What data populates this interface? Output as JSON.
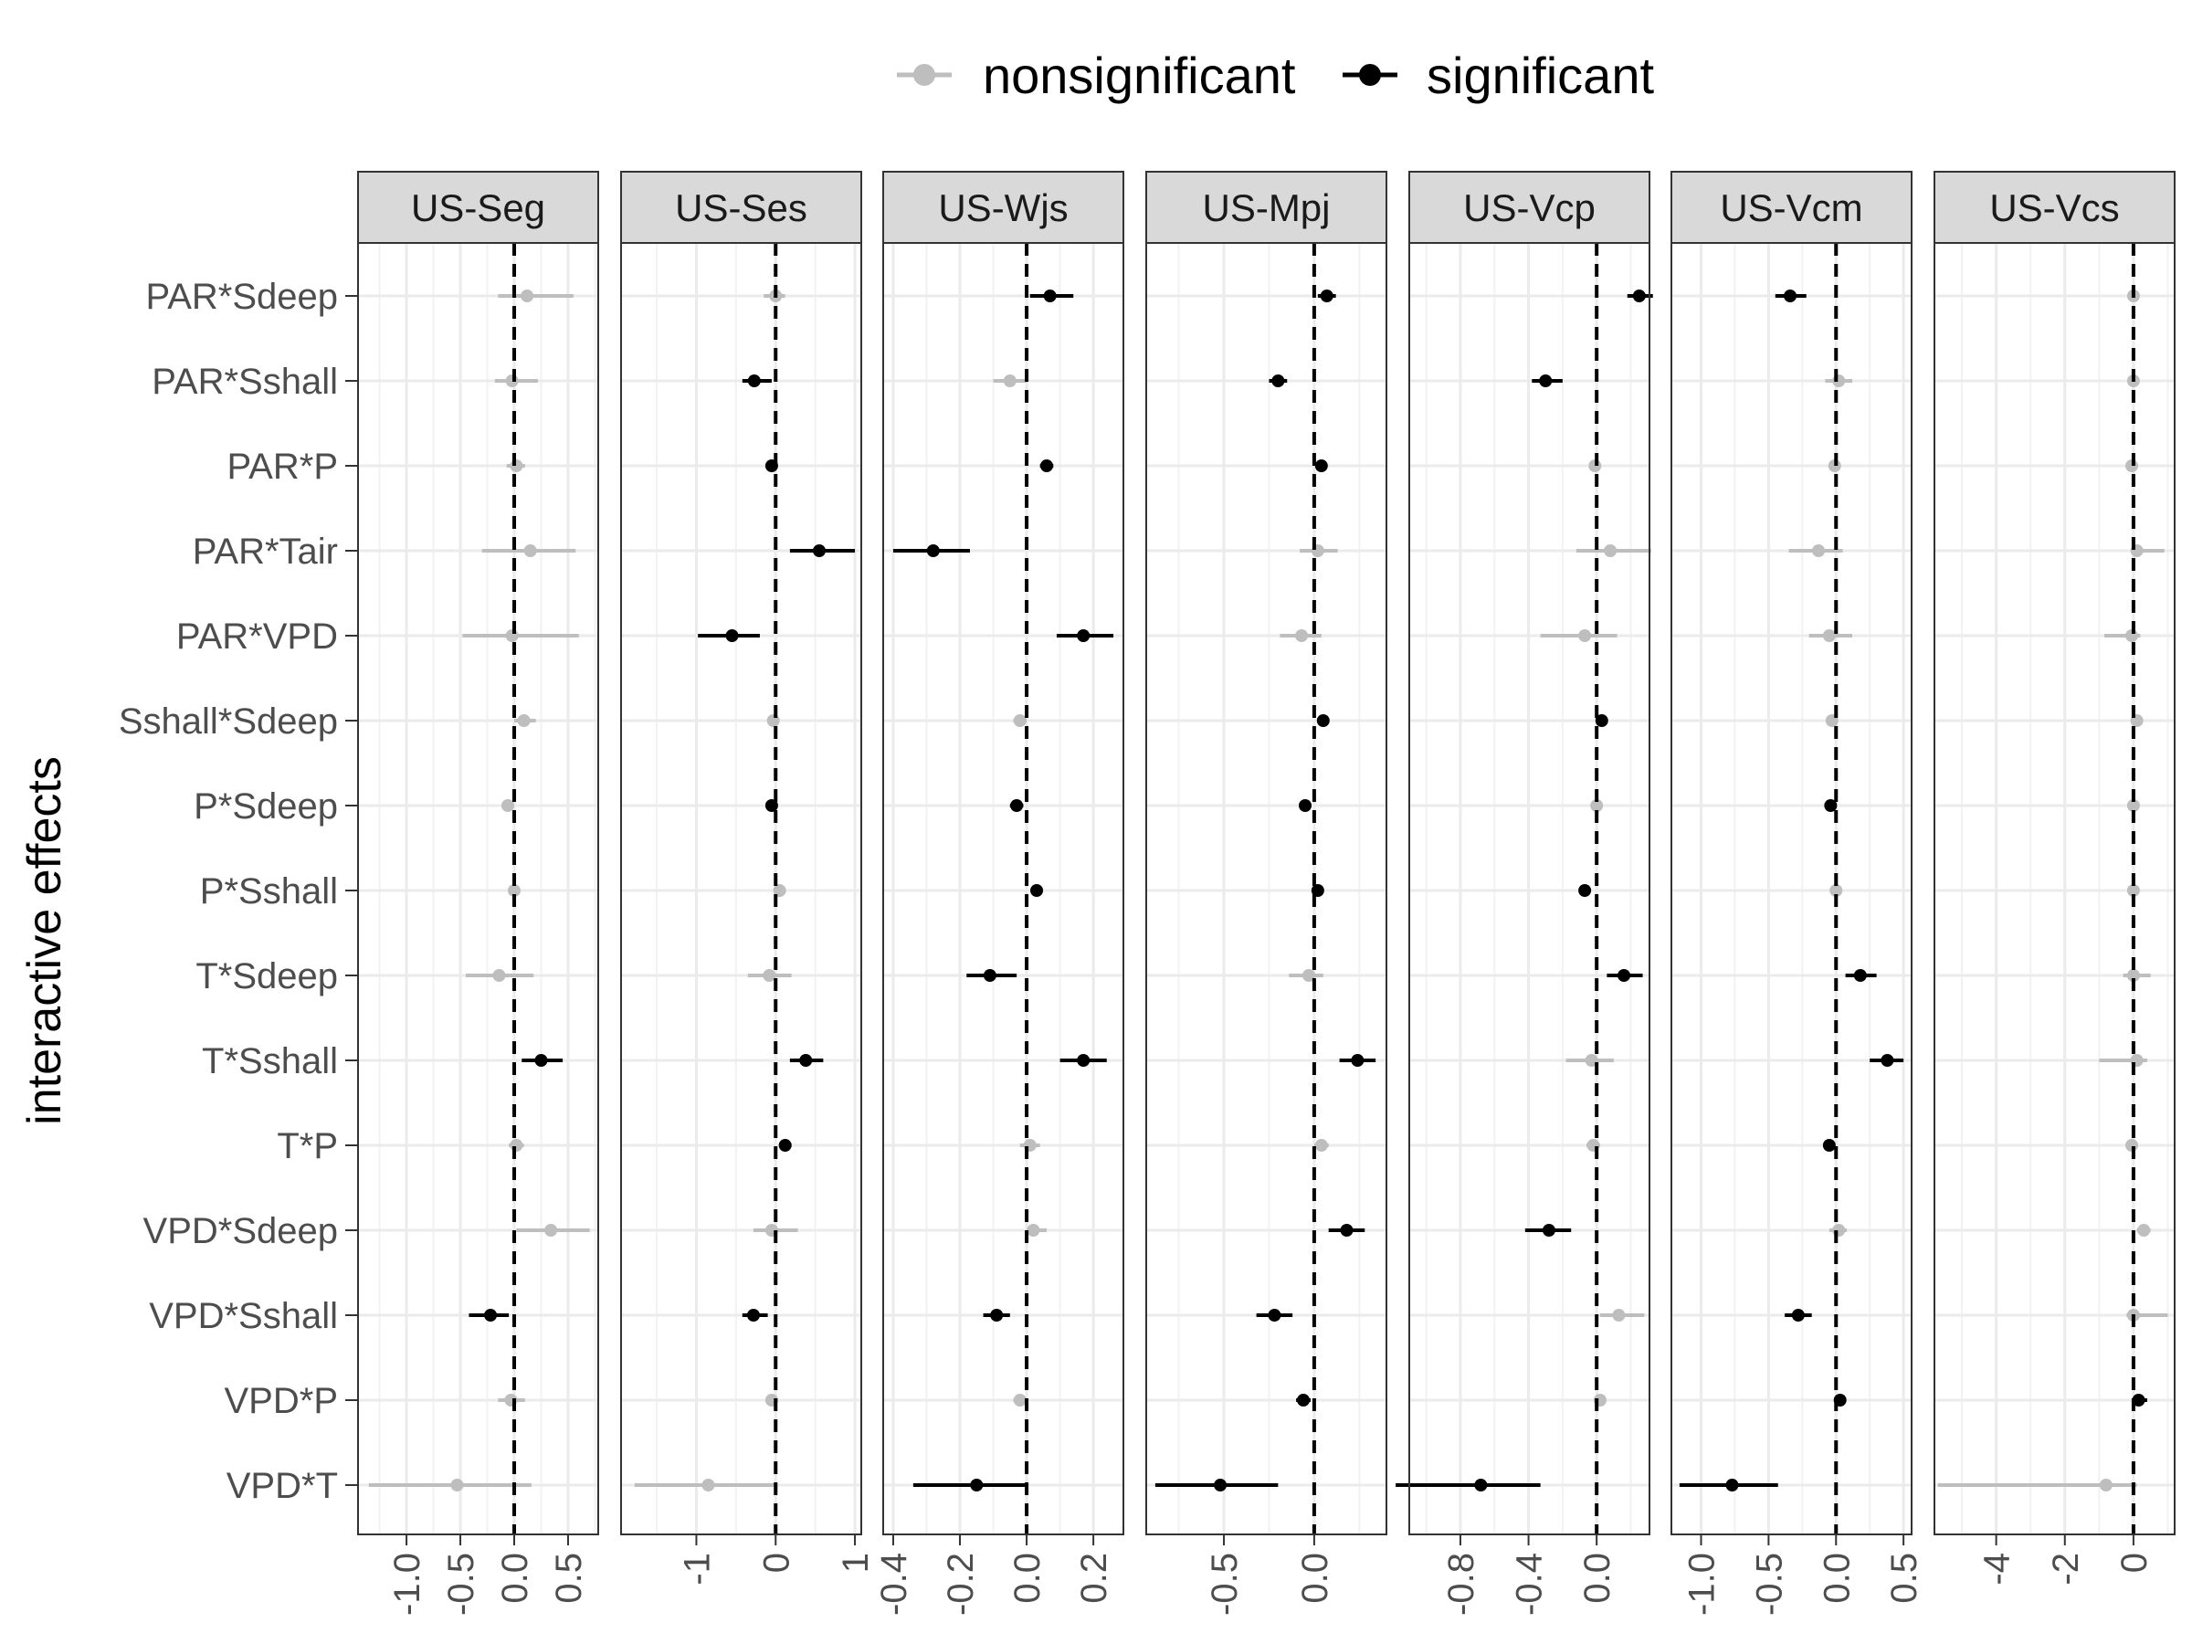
{
  "chart_data": {
    "type": "scatter",
    "subtype": "faceted coefficient plot with error bars",
    "ylabel": "interactive effects",
    "legend": {
      "position": "top",
      "entries": [
        {
          "label": "nonsignificant",
          "color": "#bebebe"
        },
        {
          "label": "significant",
          "color": "#000000"
        }
      ]
    },
    "reference_line": {
      "x": 0,
      "style": "dashed"
    },
    "grid": true,
    "y_categories": [
      "PAR*Sdeep",
      "PAR*Sshall",
      "PAR*P",
      "PAR*Tair",
      "PAR*VPD",
      "Sshall*Sdeep",
      "P*Sdeep",
      "P*Sshall",
      "T*Sdeep",
      "T*Sshall",
      "T*P",
      "VPD*Sdeep",
      "VPD*Sshall",
      "VPD*P",
      "VPD*T"
    ],
    "panels": [
      {
        "title": "US-Seg",
        "xlim": [
          -1.45,
          0.78
        ],
        "xticks": [
          -1.0,
          -0.5,
          0.0,
          0.5
        ],
        "xtick_labels": [
          "-1.0",
          "-0.5",
          "0.0",
          "0.5"
        ],
        "points": [
          {
            "term": "PAR*Sdeep",
            "est": 0.12,
            "lo": -0.15,
            "hi": 0.55,
            "sig": false
          },
          {
            "term": "PAR*Sshall",
            "est": -0.02,
            "lo": -0.18,
            "hi": 0.22,
            "sig": false
          },
          {
            "term": "PAR*P",
            "est": 0.02,
            "lo": -0.07,
            "hi": 0.1,
            "sig": false
          },
          {
            "term": "PAR*Tair",
            "est": 0.15,
            "lo": -0.3,
            "hi": 0.57,
            "sig": false
          },
          {
            "term": "PAR*VPD",
            "est": -0.02,
            "lo": -0.48,
            "hi": 0.6,
            "sig": false
          },
          {
            "term": "Sshall*Sdeep",
            "est": 0.09,
            "lo": 0.0,
            "hi": 0.2,
            "sig": false
          },
          {
            "term": "P*Sdeep",
            "est": -0.06,
            "lo": -0.11,
            "hi": 0.0,
            "sig": false
          },
          {
            "term": "P*Sshall",
            "est": 0.0,
            "lo": -0.04,
            "hi": 0.04,
            "sig": false
          },
          {
            "term": "T*Sdeep",
            "est": -0.14,
            "lo": -0.45,
            "hi": 0.18,
            "sig": false
          },
          {
            "term": "T*Sshall",
            "est": 0.25,
            "lo": 0.07,
            "hi": 0.45,
            "sig": true
          },
          {
            "term": "T*P",
            "est": 0.02,
            "lo": -0.05,
            "hi": 0.09,
            "sig": false
          },
          {
            "term": "VPD*Sdeep",
            "est": 0.34,
            "lo": 0.02,
            "hi": 0.7,
            "sig": false
          },
          {
            "term": "VPD*Sshall",
            "est": -0.22,
            "lo": -0.42,
            "hi": -0.05,
            "sig": true
          },
          {
            "term": "VPD*P",
            "est": -0.03,
            "lo": -0.15,
            "hi": 0.1,
            "sig": false
          },
          {
            "term": "VPD*T",
            "est": -0.53,
            "lo": -1.35,
            "hi": 0.16,
            "sig": false
          }
        ]
      },
      {
        "title": "US-Ses",
        "xlim": [
          -1.95,
          1.08
        ],
        "xticks": [
          -1,
          0,
          1
        ],
        "xtick_labels": [
          "-1",
          "0",
          "1"
        ],
        "points": [
          {
            "term": "PAR*Sdeep",
            "est": 0.0,
            "lo": -0.15,
            "hi": 0.12,
            "sig": false
          },
          {
            "term": "PAR*Sshall",
            "est": -0.27,
            "lo": -0.42,
            "hi": -0.05,
            "sig": true
          },
          {
            "term": "PAR*P",
            "est": -0.05,
            "lo": -0.1,
            "hi": 0.02,
            "sig": true
          },
          {
            "term": "PAR*Tair",
            "est": 0.55,
            "lo": 0.18,
            "hi": 1.0,
            "sig": true
          },
          {
            "term": "PAR*VPD",
            "est": -0.55,
            "lo": -0.98,
            "hi": -0.2,
            "sig": true
          },
          {
            "term": "Sshall*Sdeep",
            "est": -0.03,
            "lo": -0.08,
            "hi": 0.03,
            "sig": false
          },
          {
            "term": "P*Sdeep",
            "est": -0.05,
            "lo": -0.11,
            "hi": 0.0,
            "sig": true
          },
          {
            "term": "P*Sshall",
            "est": 0.05,
            "lo": 0.0,
            "hi": 0.1,
            "sig": false
          },
          {
            "term": "T*Sdeep",
            "est": -0.08,
            "lo": -0.35,
            "hi": 0.2,
            "sig": false
          },
          {
            "term": "T*Sshall",
            "est": 0.38,
            "lo": 0.18,
            "hi": 0.6,
            "sig": true
          },
          {
            "term": "T*P",
            "est": 0.12,
            "lo": 0.05,
            "hi": 0.2,
            "sig": true
          },
          {
            "term": "VPD*Sdeep",
            "est": -0.05,
            "lo": -0.28,
            "hi": 0.28,
            "sig": false
          },
          {
            "term": "VPD*Sshall",
            "est": -0.28,
            "lo": -0.42,
            "hi": -0.1,
            "sig": true
          },
          {
            "term": "VPD*P",
            "est": -0.05,
            "lo": -0.13,
            "hi": 0.03,
            "sig": false
          },
          {
            "term": "VPD*T",
            "est": -0.85,
            "lo": -1.78,
            "hi": 0.0,
            "sig": false
          }
        ]
      },
      {
        "title": "US-Wjs",
        "xlim": [
          -0.43,
          0.29
        ],
        "xticks": [
          -0.4,
          -0.2,
          0.0,
          0.2
        ],
        "xtick_labels": [
          "-0.4",
          "-0.2",
          "0.0",
          "0.2"
        ],
        "points": [
          {
            "term": "PAR*Sdeep",
            "est": 0.07,
            "lo": 0.01,
            "hi": 0.14,
            "sig": true
          },
          {
            "term": "PAR*Sshall",
            "est": -0.05,
            "lo": -0.1,
            "hi": 0.0,
            "sig": false
          },
          {
            "term": "PAR*P",
            "est": 0.06,
            "lo": 0.04,
            "hi": 0.08,
            "sig": true
          },
          {
            "term": "PAR*Tair",
            "est": -0.28,
            "lo": -0.4,
            "hi": -0.17,
            "sig": true
          },
          {
            "term": "PAR*VPD",
            "est": 0.17,
            "lo": 0.09,
            "hi": 0.26,
            "sig": true
          },
          {
            "term": "Sshall*Sdeep",
            "est": -0.02,
            "lo": -0.04,
            "hi": 0.0,
            "sig": false
          },
          {
            "term": "P*Sdeep",
            "est": -0.03,
            "lo": -0.05,
            "hi": -0.01,
            "sig": true
          },
          {
            "term": "P*Sshall",
            "est": 0.03,
            "lo": 0.02,
            "hi": 0.04,
            "sig": true
          },
          {
            "term": "T*Sdeep",
            "est": -0.11,
            "lo": -0.18,
            "hi": -0.03,
            "sig": true
          },
          {
            "term": "T*Sshall",
            "est": 0.17,
            "lo": 0.1,
            "hi": 0.24,
            "sig": true
          },
          {
            "term": "T*P",
            "est": 0.01,
            "lo": -0.02,
            "hi": 0.04,
            "sig": false
          },
          {
            "term": "VPD*Sdeep",
            "est": 0.02,
            "lo": 0.0,
            "hi": 0.06,
            "sig": false
          },
          {
            "term": "VPD*Sshall",
            "est": -0.09,
            "lo": -0.13,
            "hi": -0.05,
            "sig": true
          },
          {
            "term": "VPD*P",
            "est": -0.02,
            "lo": -0.04,
            "hi": 0.0,
            "sig": false
          },
          {
            "term": "VPD*T",
            "est": -0.15,
            "lo": -0.34,
            "hi": 0.0,
            "sig": true
          }
        ]
      },
      {
        "title": "US-Mpj",
        "xlim": [
          -0.93,
          0.4
        ],
        "xticks": [
          -0.5,
          0.0
        ],
        "xtick_labels": [
          "-0.5",
          "0.0"
        ],
        "points": [
          {
            "term": "PAR*Sdeep",
            "est": 0.07,
            "lo": 0.02,
            "hi": 0.12,
            "sig": true
          },
          {
            "term": "PAR*Sshall",
            "est": -0.2,
            "lo": -0.25,
            "hi": -0.15,
            "sig": true
          },
          {
            "term": "PAR*P",
            "est": 0.04,
            "lo": 0.02,
            "hi": 0.06,
            "sig": true
          },
          {
            "term": "PAR*Tair",
            "est": 0.02,
            "lo": -0.08,
            "hi": 0.13,
            "sig": false
          },
          {
            "term": "PAR*VPD",
            "est": -0.07,
            "lo": -0.19,
            "hi": 0.04,
            "sig": false
          },
          {
            "term": "Sshall*Sdeep",
            "est": 0.05,
            "lo": 0.03,
            "hi": 0.08,
            "sig": true
          },
          {
            "term": "P*Sdeep",
            "est": -0.05,
            "lo": -0.08,
            "hi": -0.02,
            "sig": true
          },
          {
            "term": "P*Sshall",
            "est": 0.02,
            "lo": 0.0,
            "hi": 0.04,
            "sig": true
          },
          {
            "term": "T*Sdeep",
            "est": -0.03,
            "lo": -0.14,
            "hi": 0.05,
            "sig": false
          },
          {
            "term": "T*Sshall",
            "est": 0.24,
            "lo": 0.14,
            "hi": 0.34,
            "sig": true
          },
          {
            "term": "T*P",
            "est": 0.04,
            "lo": 0.0,
            "hi": 0.08,
            "sig": false
          },
          {
            "term": "VPD*Sdeep",
            "est": 0.18,
            "lo": 0.08,
            "hi": 0.28,
            "sig": true
          },
          {
            "term": "VPD*Sshall",
            "est": -0.22,
            "lo": -0.32,
            "hi": -0.12,
            "sig": true
          },
          {
            "term": "VPD*P",
            "est": -0.06,
            "lo": -0.1,
            "hi": -0.02,
            "sig": true
          },
          {
            "term": "VPD*T",
            "est": -0.52,
            "lo": -0.88,
            "hi": -0.2,
            "sig": true
          }
        ]
      },
      {
        "title": "US-Vcp",
        "xlim": [
          -1.1,
          0.31
        ],
        "xticks": [
          -0.8,
          -0.4,
          0.0
        ],
        "xtick_labels": [
          "-0.8",
          "-0.4",
          "0.0"
        ],
        "points": [
          {
            "term": "PAR*Sdeep",
            "est": 0.25,
            "lo": 0.18,
            "hi": 0.33,
            "sig": true
          },
          {
            "term": "PAR*Sshall",
            "est": -0.3,
            "lo": -0.38,
            "hi": -0.2,
            "sig": true
          },
          {
            "term": "PAR*P",
            "est": -0.01,
            "lo": -0.04,
            "hi": 0.02,
            "sig": false
          },
          {
            "term": "PAR*Tair",
            "est": 0.08,
            "lo": -0.12,
            "hi": 0.32,
            "sig": false
          },
          {
            "term": "PAR*VPD",
            "est": -0.07,
            "lo": -0.33,
            "hi": 0.12,
            "sig": false
          },
          {
            "term": "Sshall*Sdeep",
            "est": 0.03,
            "lo": 0.0,
            "hi": 0.06,
            "sig": true
          },
          {
            "term": "P*Sdeep",
            "est": 0.0,
            "lo": -0.03,
            "hi": 0.03,
            "sig": false
          },
          {
            "term": "P*Sshall",
            "est": -0.07,
            "lo": -0.1,
            "hi": -0.04,
            "sig": true
          },
          {
            "term": "T*Sdeep",
            "est": 0.16,
            "lo": 0.06,
            "hi": 0.27,
            "sig": true
          },
          {
            "term": "T*Sshall",
            "est": -0.03,
            "lo": -0.18,
            "hi": 0.1,
            "sig": false
          },
          {
            "term": "T*P",
            "est": -0.02,
            "lo": -0.06,
            "hi": 0.02,
            "sig": false
          },
          {
            "term": "VPD*Sdeep",
            "est": -0.28,
            "lo": -0.42,
            "hi": -0.15,
            "sig": true
          },
          {
            "term": "VPD*Sshall",
            "est": 0.13,
            "lo": 0.02,
            "hi": 0.28,
            "sig": false
          },
          {
            "term": "VPD*P",
            "est": 0.02,
            "lo": -0.01,
            "hi": 0.05,
            "sig": false
          },
          {
            "term": "VPD*T",
            "est": -0.68,
            "lo": -1.18,
            "hi": -0.33,
            "sig": true
          }
        ]
      },
      {
        "title": "US-Vcm",
        "xlim": [
          -1.22,
          0.56
        ],
        "xticks": [
          -1.0,
          -0.5,
          0.0,
          0.5
        ],
        "xtick_labels": [
          "-1.0",
          "-0.5",
          "0.0",
          "0.5"
        ],
        "points": [
          {
            "term": "PAR*Sdeep",
            "est": -0.34,
            "lo": -0.45,
            "hi": -0.22,
            "sig": true
          },
          {
            "term": "PAR*Sshall",
            "est": 0.02,
            "lo": -0.08,
            "hi": 0.12,
            "sig": false
          },
          {
            "term": "PAR*P",
            "est": -0.01,
            "lo": -0.04,
            "hi": 0.02,
            "sig": false
          },
          {
            "term": "PAR*Tair",
            "est": -0.13,
            "lo": -0.35,
            "hi": 0.05,
            "sig": false
          },
          {
            "term": "PAR*VPD",
            "est": -0.05,
            "lo": -0.2,
            "hi": 0.12,
            "sig": false
          },
          {
            "term": "Sshall*Sdeep",
            "est": -0.03,
            "lo": -0.06,
            "hi": 0.0,
            "sig": false
          },
          {
            "term": "P*Sdeep",
            "est": -0.04,
            "lo": -0.07,
            "hi": -0.01,
            "sig": true
          },
          {
            "term": "P*Sshall",
            "est": 0.0,
            "lo": -0.03,
            "hi": 0.03,
            "sig": false
          },
          {
            "term": "T*Sdeep",
            "est": 0.18,
            "lo": 0.07,
            "hi": 0.3,
            "sig": true
          },
          {
            "term": "T*Sshall",
            "est": 0.38,
            "lo": 0.25,
            "hi": 0.5,
            "sig": true
          },
          {
            "term": "T*P",
            "est": -0.05,
            "lo": -0.09,
            "hi": -0.01,
            "sig": true
          },
          {
            "term": "VPD*Sdeep",
            "est": 0.02,
            "lo": -0.05,
            "hi": 0.08,
            "sig": false
          },
          {
            "term": "VPD*Sshall",
            "est": -0.28,
            "lo": -0.38,
            "hi": -0.18,
            "sig": true
          },
          {
            "term": "VPD*P",
            "est": 0.03,
            "lo": 0.0,
            "hi": 0.06,
            "sig": true
          },
          {
            "term": "VPD*T",
            "est": -0.77,
            "lo": -1.16,
            "hi": -0.43,
            "sig": true
          }
        ]
      },
      {
        "title": "US-Vcs",
        "xlim": [
          -5.8,
          1.2
        ],
        "xticks": [
          -4,
          -2,
          0
        ],
        "xtick_labels": [
          "-4",
          "-2",
          "0"
        ],
        "points": [
          {
            "term": "PAR*Sdeep",
            "est": 0.0,
            "lo": -0.1,
            "hi": 0.1,
            "sig": false
          },
          {
            "term": "PAR*Sshall",
            "est": 0.0,
            "lo": -0.1,
            "hi": 0.1,
            "sig": false
          },
          {
            "term": "PAR*P",
            "est": -0.05,
            "lo": -0.1,
            "hi": 0.0,
            "sig": false
          },
          {
            "term": "PAR*Tair",
            "est": 0.1,
            "lo": -0.05,
            "hi": 0.9,
            "sig": false
          },
          {
            "term": "PAR*VPD",
            "est": -0.05,
            "lo": -0.85,
            "hi": 0.2,
            "sig": false
          },
          {
            "term": "Sshall*Sdeep",
            "est": 0.1,
            "lo": 0.0,
            "hi": 0.2,
            "sig": false
          },
          {
            "term": "P*Sdeep",
            "est": 0.0,
            "lo": -0.05,
            "hi": 0.05,
            "sig": false
          },
          {
            "term": "P*Sshall",
            "est": 0.0,
            "lo": -0.05,
            "hi": 0.05,
            "sig": false
          },
          {
            "term": "T*Sdeep",
            "est": 0.0,
            "lo": -0.3,
            "hi": 0.5,
            "sig": false
          },
          {
            "term": "T*Sshall",
            "est": 0.1,
            "lo": -1.0,
            "hi": 0.4,
            "sig": false
          },
          {
            "term": "T*P",
            "est": -0.05,
            "lo": -0.1,
            "hi": 0.05,
            "sig": false
          },
          {
            "term": "VPD*Sdeep",
            "est": 0.3,
            "lo": 0.1,
            "hi": 0.5,
            "sig": false
          },
          {
            "term": "VPD*Sshall",
            "est": 0.0,
            "lo": -0.2,
            "hi": 1.0,
            "sig": false
          },
          {
            "term": "VPD*P",
            "est": 0.15,
            "lo": 0.0,
            "hi": 0.4,
            "sig": true
          },
          {
            "term": "VPD*T",
            "est": -0.8,
            "lo": -5.7,
            "hi": 0.1,
            "sig": false
          }
        ]
      }
    ]
  }
}
